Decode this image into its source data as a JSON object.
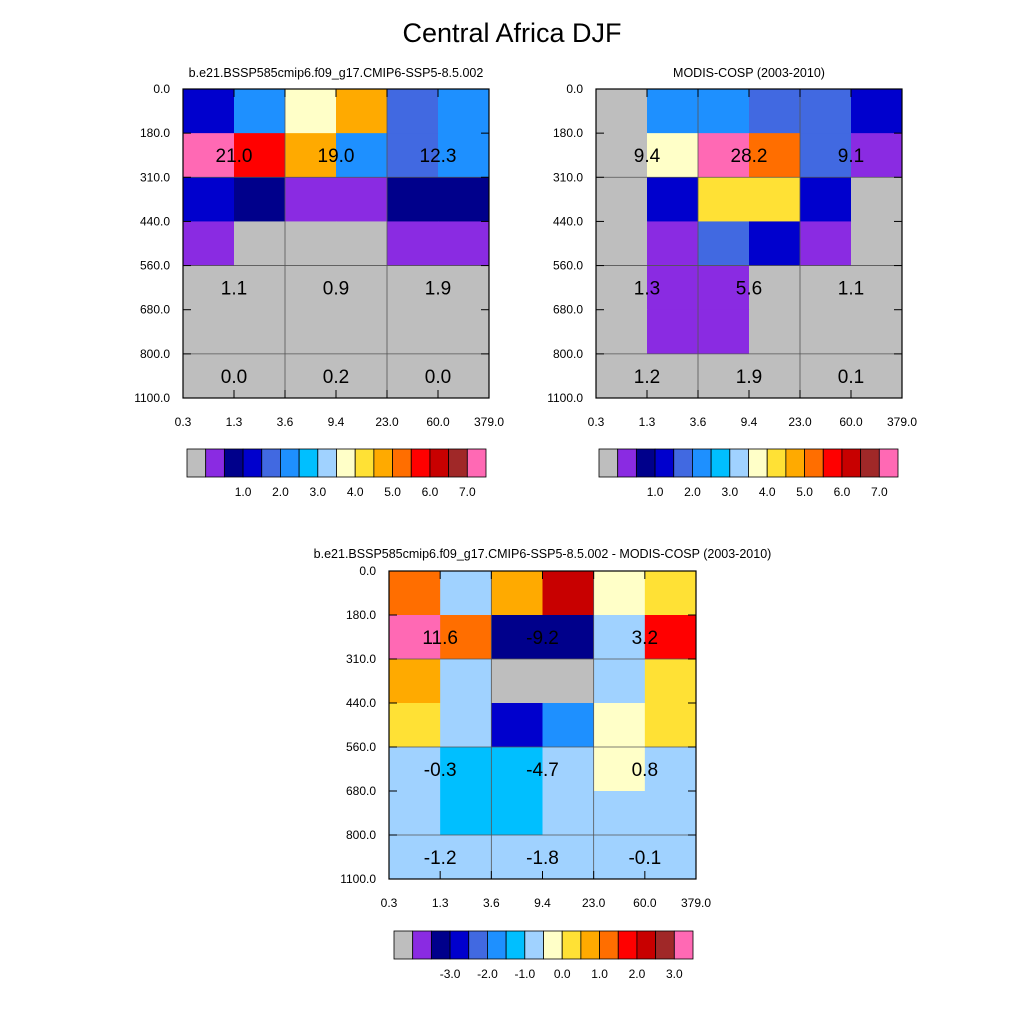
{
  "title": "Central Africa DJF",
  "palette": [
    "#bebebe",
    "#8a2be2",
    "#00008b",
    "#0000cd",
    "#4169e1",
    "#1e90ff",
    "#00bfff",
    "#a0d2ff",
    "#ffffc8",
    "#ffe135",
    "#ffaa00",
    "#ff6e00",
    "#ff0000",
    "#c80000",
    "#a02828",
    "#ff69b4"
  ],
  "chart_data": [
    {
      "type": "heatmap",
      "title": "b.e21.BSSP585cmip6.f09_g17.CMIP6-SSP5-8.5.002",
      "x_ticks": [
        "0.3",
        "1.3",
        "3.6",
        "9.4",
        "23.0",
        "60.0",
        "379.0"
      ],
      "y_ticks": [
        "0.0",
        "180.0",
        "310.0",
        "440.0",
        "560.0",
        "680.0",
        "800.0",
        "1100.0"
      ],
      "cell_colors": [
        [
          3,
          5,
          8,
          10,
          4,
          5
        ],
        [
          15,
          12,
          10,
          5,
          4,
          5
        ],
        [
          3,
          2,
          1,
          1,
          2,
          2
        ],
        [
          1,
          0,
          0,
          0,
          1,
          1
        ],
        [
          0,
          0,
          0,
          0,
          0,
          0
        ],
        [
          0,
          0,
          0,
          0,
          0,
          0
        ],
        [
          0,
          0,
          0,
          0,
          0,
          0
        ]
      ],
      "labels": [
        {
          "text": "21.0",
          "col": 0.5,
          "row": 1
        },
        {
          "text": "19.0",
          "col": 2.5,
          "row": 1
        },
        {
          "text": "12.3",
          "col": 4.5,
          "row": 1
        },
        {
          "text": "1.1",
          "col": 0.5,
          "row": 4
        },
        {
          "text": "0.9",
          "col": 2.5,
          "row": 4
        },
        {
          "text": "1.9",
          "col": 4.5,
          "row": 4
        },
        {
          "text": "0.0",
          "col": 0.5,
          "row": 6
        },
        {
          "text": "0.2",
          "col": 2.5,
          "row": 6
        },
        {
          "text": "0.0",
          "col": 4.5,
          "row": 6
        }
      ],
      "colorbar_labels": [
        "1.0",
        "2.0",
        "3.0",
        "4.0",
        "5.0",
        "6.0",
        "7.0"
      ]
    },
    {
      "type": "heatmap",
      "title": "MODIS-COSP (2003-2010)",
      "x_ticks": [
        "0.3",
        "1.3",
        "3.6",
        "9.4",
        "23.0",
        "60.0",
        "379.0"
      ],
      "y_ticks": [
        "0.0",
        "180.0",
        "310.0",
        "440.0",
        "560.0",
        "680.0",
        "800.0",
        "1100.0"
      ],
      "cell_colors": [
        [
          0,
          5,
          5,
          4,
          4,
          3
        ],
        [
          0,
          8,
          15,
          11,
          4,
          1
        ],
        [
          0,
          3,
          9,
          9,
          3,
          0
        ],
        [
          0,
          1,
          4,
          3,
          1,
          0
        ],
        [
          0,
          1,
          1,
          0,
          0,
          0
        ],
        [
          0,
          1,
          1,
          0,
          0,
          0
        ],
        [
          0,
          0,
          0,
          0,
          0,
          0
        ]
      ],
      "labels": [
        {
          "text": "9.4",
          "col": 0.5,
          "row": 1
        },
        {
          "text": "28.2",
          "col": 2.5,
          "row": 1
        },
        {
          "text": "9.1",
          "col": 4.5,
          "row": 1
        },
        {
          "text": "1.3",
          "col": 0.5,
          "row": 4
        },
        {
          "text": "5.6",
          "col": 2.5,
          "row": 4
        },
        {
          "text": "1.1",
          "col": 4.5,
          "row": 4
        },
        {
          "text": "1.2",
          "col": 0.5,
          "row": 6
        },
        {
          "text": "1.9",
          "col": 2.5,
          "row": 6
        },
        {
          "text": "0.1",
          "col": 4.5,
          "row": 6
        }
      ],
      "colorbar_labels": [
        "1.0",
        "2.0",
        "3.0",
        "4.0",
        "5.0",
        "6.0",
        "7.0"
      ]
    },
    {
      "type": "heatmap",
      "title": "b.e21.BSSP585cmip6.f09_g17.CMIP6-SSP5-8.5.002 - MODIS-COSP (2003-2010)",
      "x_ticks": [
        "0.3",
        "1.3",
        "3.6",
        "9.4",
        "23.0",
        "60.0",
        "379.0"
      ],
      "y_ticks": [
        "0.0",
        "180.0",
        "310.0",
        "440.0",
        "560.0",
        "680.0",
        "800.0",
        "1100.0"
      ],
      "cell_colors": [
        [
          11,
          7,
          10,
          13,
          8,
          9
        ],
        [
          15,
          11,
          2,
          2,
          7,
          12
        ],
        [
          10,
          7,
          0,
          0,
          7,
          9
        ],
        [
          9,
          7,
          3,
          5,
          8,
          9
        ],
        [
          7,
          6,
          6,
          7,
          8,
          7
        ],
        [
          7,
          6,
          6,
          7,
          7,
          7
        ],
        [
          7,
          7,
          7,
          7,
          7,
          7
        ]
      ],
      "labels": [
        {
          "text": "11.6",
          "col": 0.5,
          "row": 1
        },
        {
          "text": "-9.2",
          "col": 2.5,
          "row": 1
        },
        {
          "text": "3.2",
          "col": 4.5,
          "row": 1
        },
        {
          "text": "-0.3",
          "col": 0.5,
          "row": 4
        },
        {
          "text": "-4.7",
          "col": 2.5,
          "row": 4
        },
        {
          "text": "0.8",
          "col": 4.5,
          "row": 4
        },
        {
          "text": "-1.2",
          "col": 0.5,
          "row": 6
        },
        {
          "text": "-1.8",
          "col": 2.5,
          "row": 6
        },
        {
          "text": "-0.1",
          "col": 4.5,
          "row": 6
        }
      ],
      "colorbar_labels": [
        "-3.0",
        "-2.0",
        "-1.0",
        "0.0",
        "1.0",
        "2.0",
        "3.0"
      ]
    }
  ]
}
